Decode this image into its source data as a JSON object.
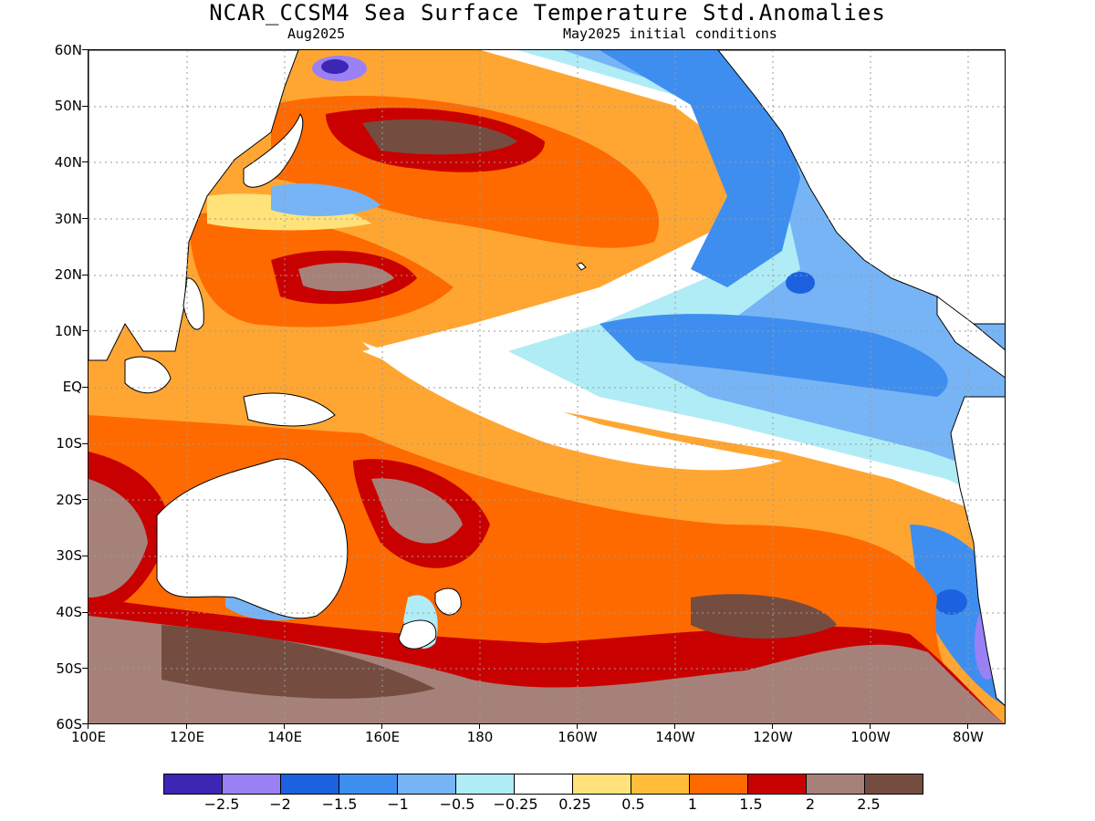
{
  "title": "NCAR_CCSM4 Sea Surface Temperature Std.Anomalies",
  "subtitle_left": "Aug2025",
  "subtitle_right": "May2025 initial conditions",
  "lat_labels": [
    "60N",
    "50N",
    "40N",
    "30N",
    "20N",
    "10N",
    "EQ",
    "10S",
    "20S",
    "30S",
    "40S",
    "50S",
    "60S"
  ],
  "lon_labels": [
    "100E",
    "120E",
    "140E",
    "160E",
    "180",
    "160W",
    "140W",
    "120W",
    "100W",
    "80W"
  ],
  "colorbar": {
    "colors": [
      "#3c27b4",
      "#9a80f5",
      "#1c62e0",
      "#3e8ef0",
      "#76b4f5",
      "#b0ecf6",
      "#ffffff",
      "#ffe27a",
      "#ffbd3a",
      "#ff6a00",
      "#c90000",
      "#a6817a",
      "#744d40"
    ],
    "labels": [
      "−2.5",
      "−2",
      "−1.5",
      "−1",
      "−0.5",
      "−0.25",
      "0.25",
      "0.5",
      "1",
      "1.5",
      "2",
      "2.5"
    ]
  },
  "map_colors": {
    "ocean_base": "#ffa632",
    "land": "#ffffff",
    "coast": "#000000",
    "grid": "#9a9a9a"
  }
}
